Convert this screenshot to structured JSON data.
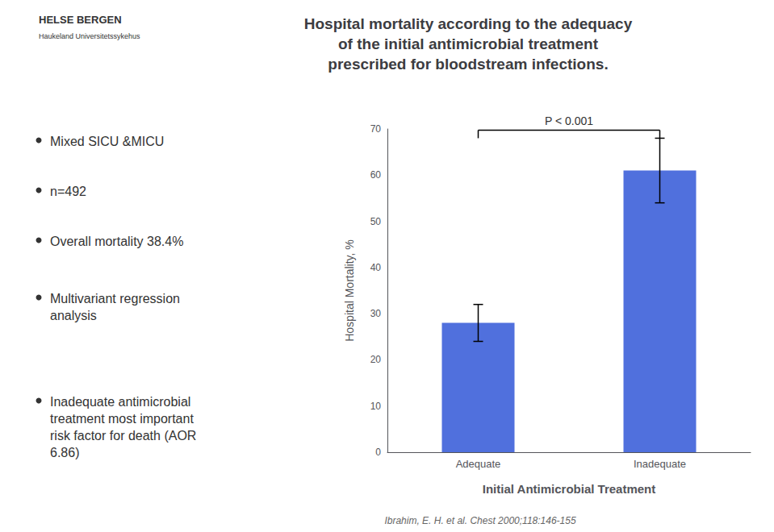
{
  "chart_data": {
    "type": "bar",
    "title": "Hospital mortality according to the adequacy\nof the initial antimicrobial treatment\nprescribed for bloodstream infections.",
    "categories": [
      "Adequate",
      "Inadequate"
    ],
    "values": [
      28,
      61
    ],
    "errors": [
      4,
      7
    ],
    "xlabel": "Initial Antimicrobial Treatment",
    "ylabel": "Hospital Mortality, %",
    "ylim": [
      0,
      70
    ],
    "yticks": [
      0,
      10,
      20,
      30,
      40,
      50,
      60,
      70
    ],
    "grid": false,
    "annotations": {
      "pvalue": "P < 0.001",
      "bullets": [
        "Mixed SICU &MICU",
        "n=492",
        "Overall mortality 38.4%",
        "Multivariant regression\nanalysis",
        "Inadequate antimicrobial\ntreatment most important\nrisk factor for death (AOR\n6.86)"
      ],
      "logo": [
        "HELSE BERGEN",
        "Haukeland Universitetssykehus"
      ],
      "citation": "Ibrahim, E. H. et al. Chest 2000;118:146-155"
    }
  }
}
